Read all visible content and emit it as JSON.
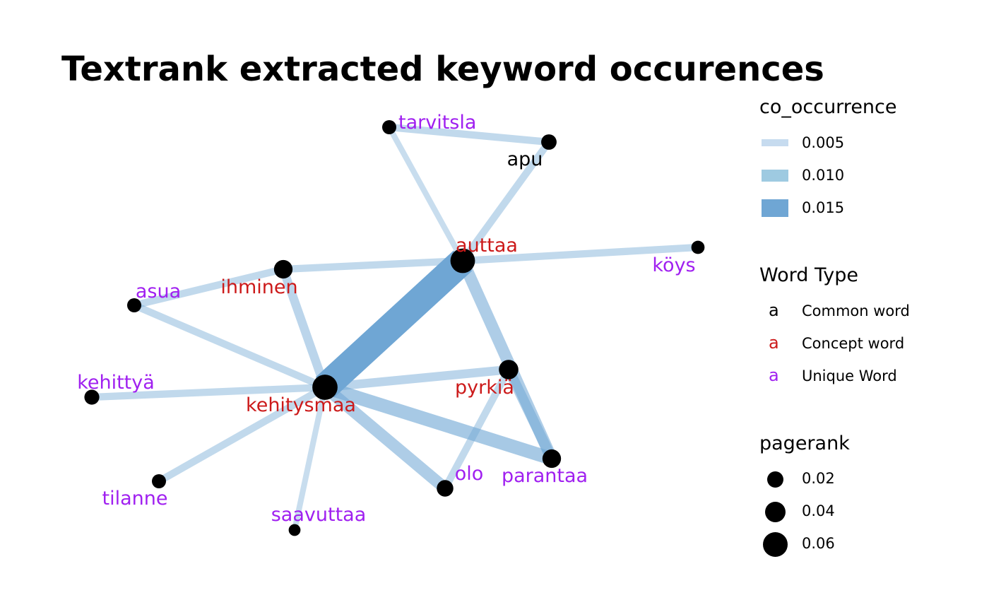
{
  "title": "Textrank extracted keyword occurences",
  "colors": {
    "common": "#000000",
    "concept": "#cc1a1a",
    "unique": "#a020f0",
    "edge": "#6fa6d4",
    "node": "#000000"
  },
  "chart_data": {
    "type": "network",
    "nodes": [
      {
        "id": "tarvitsla",
        "type": "unique",
        "pagerank": 0.015
      },
      {
        "id": "apu",
        "type": "common",
        "pagerank": 0.02
      },
      {
        "id": "auttaa",
        "type": "concept",
        "pagerank": 0.075
      },
      {
        "id": "köys",
        "type": "unique",
        "pagerank": 0.012
      },
      {
        "id": "ihminen",
        "type": "concept",
        "pagerank": 0.035
      },
      {
        "id": "asua",
        "type": "unique",
        "pagerank": 0.015
      },
      {
        "id": "kehittyä",
        "type": "unique",
        "pagerank": 0.018
      },
      {
        "id": "kehitysmaa",
        "type": "concept",
        "pagerank": 0.08
      },
      {
        "id": "pyrkiä",
        "type": "concept",
        "pagerank": 0.04
      },
      {
        "id": "parantaa",
        "type": "unique",
        "pagerank": 0.035
      },
      {
        "id": "olo",
        "type": "unique",
        "pagerank": 0.025
      },
      {
        "id": "tilanne",
        "type": "unique",
        "pagerank": 0.015
      },
      {
        "id": "saavuttaa",
        "type": "unique",
        "pagerank": 0.008
      }
    ],
    "edges": [
      {
        "from": "tarvitsla",
        "to": "apu",
        "co_occurrence": 0.004
      },
      {
        "from": "tarvitsla",
        "to": "auttaa",
        "co_occurrence": 0.003
      },
      {
        "from": "apu",
        "to": "auttaa",
        "co_occurrence": 0.004
      },
      {
        "from": "auttaa",
        "to": "köys",
        "co_occurrence": 0.004
      },
      {
        "from": "ihminen",
        "to": "auttaa",
        "co_occurrence": 0.004
      },
      {
        "from": "asua",
        "to": "ihminen",
        "co_occurrence": 0.004
      },
      {
        "from": "auttaa",
        "to": "kehitysmaa",
        "co_occurrence": 0.017
      },
      {
        "from": "auttaa",
        "to": "parantaa",
        "co_occurrence": 0.007
      },
      {
        "from": "ihminen",
        "to": "kehitysmaa",
        "co_occurrence": 0.005
      },
      {
        "from": "asua",
        "to": "kehitysmaa",
        "co_occurrence": 0.004
      },
      {
        "from": "kehittyä",
        "to": "kehitysmaa",
        "co_occurrence": 0.004
      },
      {
        "from": "kehitysmaa",
        "to": "pyrkiä",
        "co_occurrence": 0.005
      },
      {
        "from": "kehitysmaa",
        "to": "parantaa",
        "co_occurrence": 0.008
      },
      {
        "from": "kehitysmaa",
        "to": "olo",
        "co_occurrence": 0.007
      },
      {
        "from": "kehitysmaa",
        "to": "tilanne",
        "co_occurrence": 0.004
      },
      {
        "from": "kehitysmaa",
        "to": "saavuttaa",
        "co_occurrence": 0.003
      },
      {
        "from": "pyrkiä",
        "to": "parantaa",
        "co_occurrence": 0.006
      },
      {
        "from": "pyrkiä",
        "to": "olo",
        "co_occurrence": 0.004
      }
    ]
  },
  "legends": {
    "co_occurrence": {
      "title": "co_occurrence",
      "items": [
        {
          "label": "0.005",
          "value": 0.005,
          "color": "#c6dbef"
        },
        {
          "label": "0.010",
          "value": 0.01,
          "color": "#9ecae1"
        },
        {
          "label": "0.015",
          "value": 0.015,
          "color": "#6fa6d4"
        }
      ]
    },
    "word_type": {
      "title": "Word Type",
      "items": [
        {
          "glyph": "a",
          "label": "Common word",
          "color": "#000000"
        },
        {
          "glyph": "a",
          "label": "Concept word",
          "color": "#cc1a1a"
        },
        {
          "glyph": "a",
          "label": "Unique Word",
          "color": "#a020f0"
        }
      ]
    },
    "pagerank": {
      "title": "pagerank",
      "items": [
        {
          "label": "0.02",
          "value": 0.02
        },
        {
          "label": "0.04",
          "value": 0.04
        },
        {
          "label": "0.06",
          "value": 0.06
        }
      ]
    }
  }
}
